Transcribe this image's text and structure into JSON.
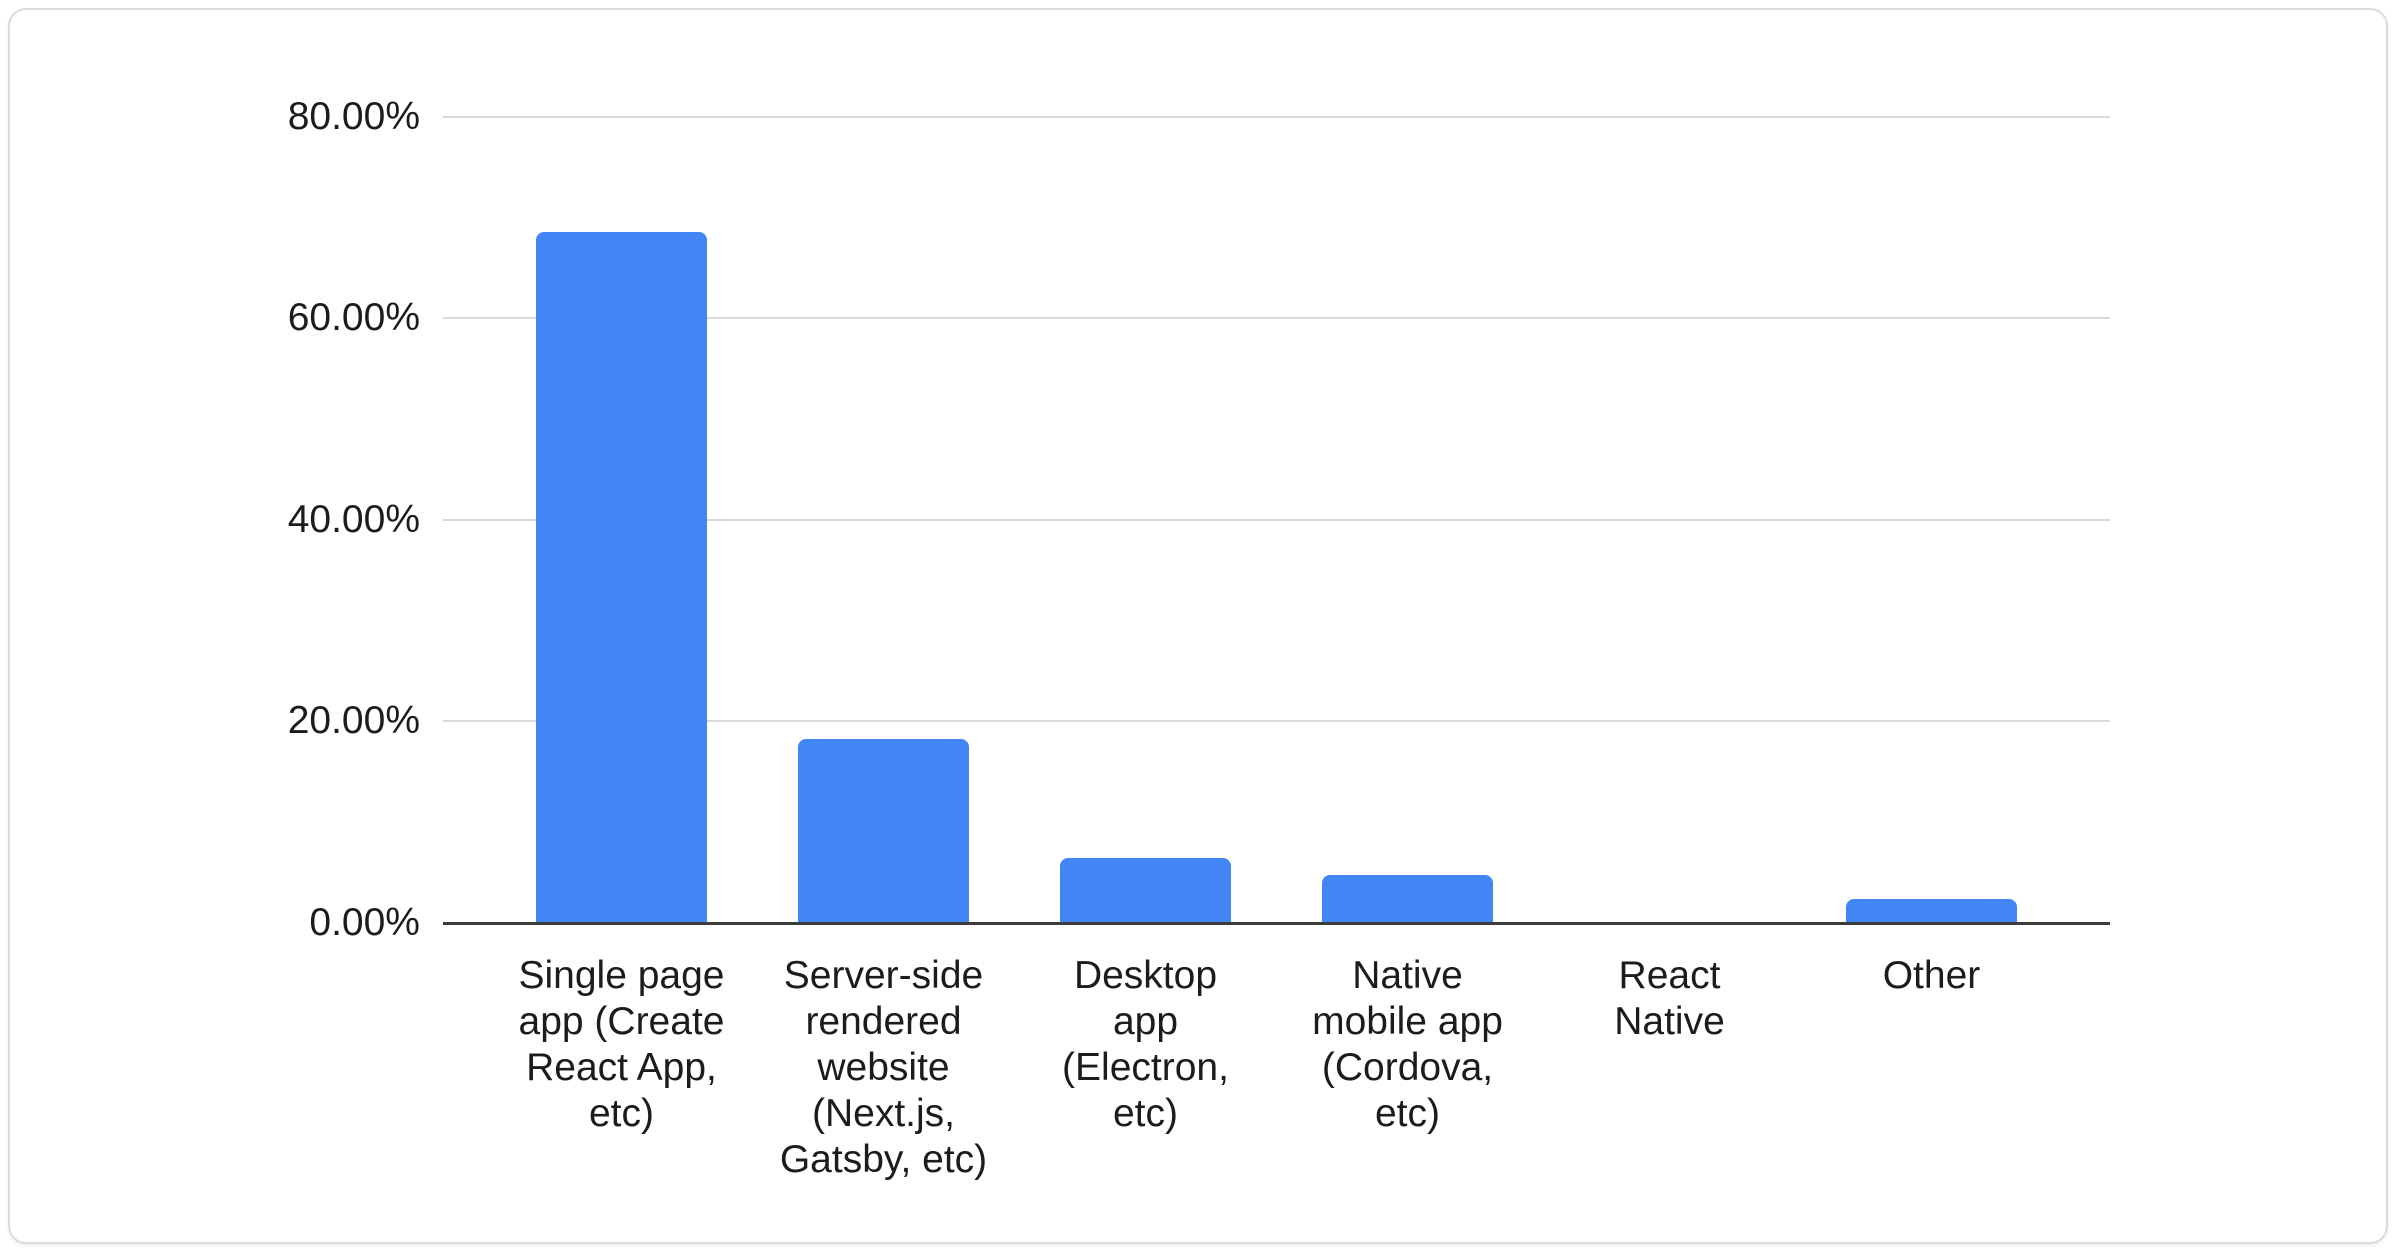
{
  "card": {
    "background": "#ffffff",
    "border_color": "#d8dbdf"
  },
  "chart_data": {
    "type": "bar",
    "title": "",
    "xlabel": "",
    "ylabel": "",
    "ylim": [
      0,
      80
    ],
    "grid": true,
    "legend": "none",
    "categories": [
      {
        "label": "Single page app (Create React App, etc)",
        "wrapped": "Single page\napp (Create\nReact App,\netc)"
      },
      {
        "label": "Server-side rendered website (Next.js, Gatsby, etc)",
        "wrapped": "Server-side\nrendered\nwebsite\n(Next.js,\nGatsby, etc)"
      },
      {
        "label": "Desktop app (Electron, etc)",
        "wrapped": "Desktop\napp\n(Electron,\netc)"
      },
      {
        "label": "Native mobile app (Cordova, etc)",
        "wrapped": "Native\nmobile app\n(Cordova,\netc)"
      },
      {
        "label": "React Native",
        "wrapped": "React\nNative"
      },
      {
        "label": "Other",
        "wrapped": "Other"
      }
    ],
    "values": [
      68.5,
      18.3,
      6.4,
      4.8,
      0,
      2.4
    ],
    "yticks": [
      {
        "value": 0,
        "label": "0.00%"
      },
      {
        "value": 20,
        "label": "20.00%"
      },
      {
        "value": 40,
        "label": "40.00%"
      },
      {
        "value": 60,
        "label": "60.00%"
      },
      {
        "value": 80,
        "label": "80.00%"
      }
    ],
    "colors": {
      "bar": "#4285F4",
      "gridline": "#d9d9d9",
      "axis": "#3c3c3c",
      "text": "#1c1c1c"
    }
  }
}
